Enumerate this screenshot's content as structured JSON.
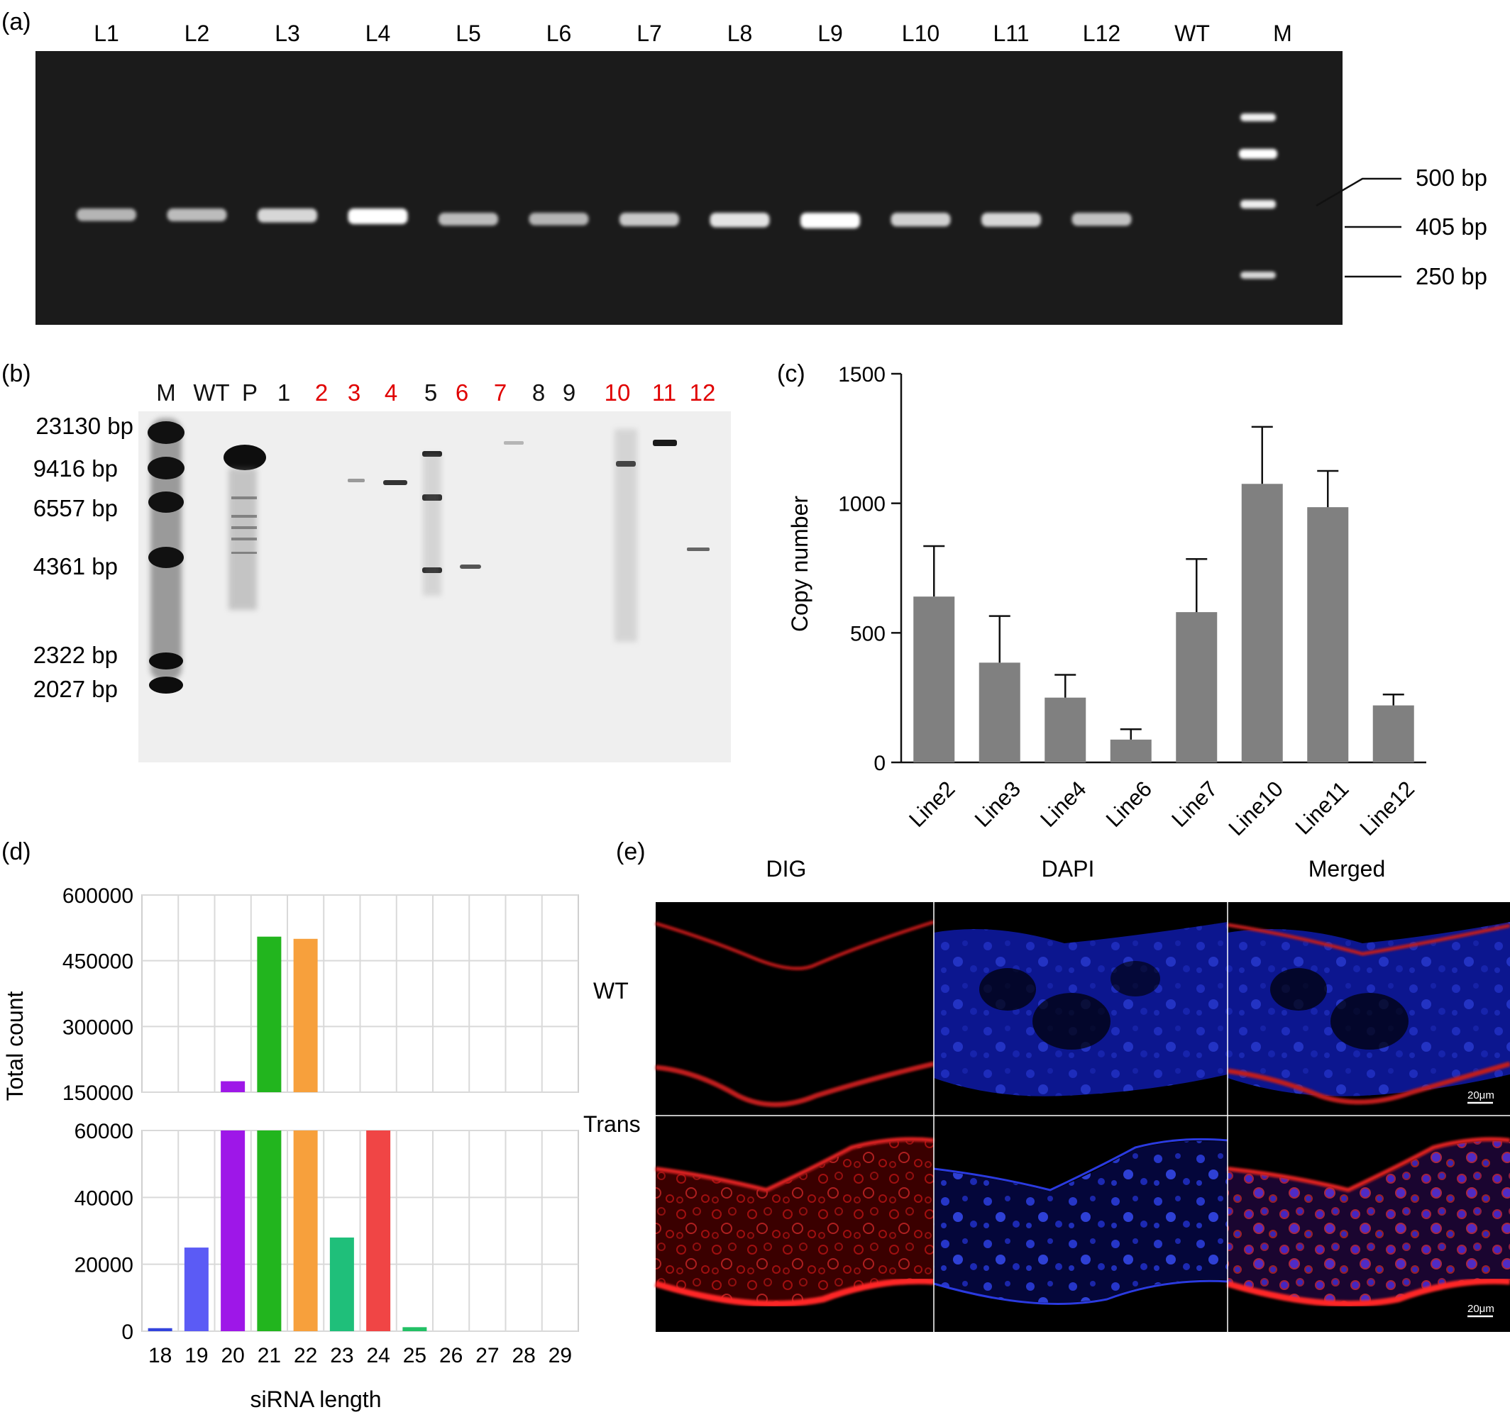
{
  "panels": {
    "a": {
      "label": "(a)",
      "lanes": [
        "L1",
        "L2",
        "L3",
        "L4",
        "L5",
        "L6",
        "L7",
        "L8",
        "L9",
        "L10",
        "L11",
        "L12",
        "WT",
        "M"
      ],
      "band_intensity": [
        0.45,
        0.5,
        0.7,
        1.0,
        0.5,
        0.45,
        0.6,
        0.8,
        1.0,
        0.65,
        0.7,
        0.55,
        0,
        0
      ],
      "marker_labels": [
        "500 bp",
        "405 bp",
        "250 bp"
      ]
    },
    "b": {
      "label": "(b)",
      "lanes": [
        "M",
        "WT",
        "P",
        "1",
        "2",
        "3",
        "4",
        "5",
        "6",
        "7",
        "8",
        "9",
        "10",
        "11",
        "12"
      ],
      "highlight_color": "#e00000",
      "highlighted_lanes": [
        "2",
        "3",
        "4",
        "6",
        "7",
        "10",
        "11",
        "12"
      ],
      "size_labels": [
        "23130 bp",
        "9416 bp",
        "6557 bp",
        "4361 bp",
        "2322 bp",
        "2027 bp"
      ]
    },
    "c": {
      "label": "(c)",
      "chart_data": {
        "type": "bar",
        "categories": [
          "Line2",
          "Line3",
          "Line4",
          "Line6",
          "Line7",
          "Line10",
          "Line11",
          "Line12"
        ],
        "values": [
          640,
          385,
          250,
          88,
          580,
          1075,
          985,
          220
        ],
        "errors": [
          195,
          180,
          88,
          40,
          205,
          220,
          140,
          42
        ],
        "ylabel": "Copy number",
        "ylim": [
          0,
          1500
        ],
        "yticks": [
          0,
          500,
          1000,
          1500
        ],
        "bar_color": "#808080",
        "grid": false
      }
    },
    "d": {
      "label": "(d)",
      "chart_data": {
        "type": "bar",
        "categories": [
          "18",
          "19",
          "20",
          "21",
          "22",
          "23",
          "24",
          "25",
          "26",
          "27",
          "28",
          "29"
        ],
        "values": [
          900,
          25000,
          175000,
          505000,
          500000,
          28000,
          60000,
          1200,
          0,
          0,
          0,
          0
        ],
        "colors": [
          "#3344dd",
          "#5b5bf5",
          "#9e17e8",
          "#22b51e",
          "#f7a03c",
          "#1fbf7a",
          "#f04545",
          "#22c065",
          "#999999",
          "#999999",
          "#999999",
          "#999999"
        ],
        "xlabel": "siRNA length",
        "ylabel": "Total count",
        "axis_break": true,
        "lower_ylim": [
          0,
          60000
        ],
        "lower_yticks": [
          "0",
          "20000",
          "40000",
          "60000"
        ],
        "upper_ylim": [
          150000,
          600000
        ],
        "upper_yticks": [
          "150000",
          "300000",
          "450000",
          "600000"
        ],
        "grid": true
      }
    },
    "e": {
      "label": "(e)",
      "columns": [
        "DIG",
        "DAPI",
        "Merged"
      ],
      "rows": [
        "WT",
        "Trans"
      ],
      "scale_bar": "20μm"
    }
  }
}
